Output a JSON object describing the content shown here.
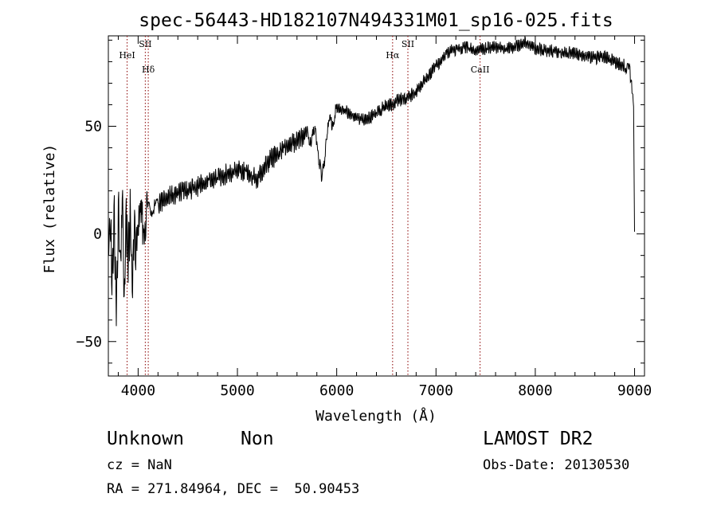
{
  "chart_data": {
    "type": "line",
    "title": "spec-56443-HD182107N494331M01_sp16-025.fits",
    "xlabel": "Wavelength (Å)",
    "ylabel": "Flux (relative)",
    "xlim": [
      3700,
      9100
    ],
    "ylim": [
      -66,
      92
    ],
    "xticks": [
      4000,
      5000,
      6000,
      7000,
      8000,
      9000
    ],
    "yticks": [
      -50,
      0,
      50
    ],
    "xtick_labels": [
      "4000",
      "5000",
      "6000",
      "7000",
      "8000",
      "9000"
    ],
    "ytick_labels": [
      "−50",
      "0",
      "50"
    ],
    "grid": false,
    "legend": "none",
    "line_color": "#000000",
    "marker_color": "#8b0000",
    "spectral_lines": [
      {
        "label": "HeI",
        "wavelength": 3889
      },
      {
        "label": "SII",
        "wavelength": 4072
      },
      {
        "label": "Hδ",
        "wavelength": 4102
      },
      {
        "label": "Hα",
        "wavelength": 6563
      },
      {
        "label": "SII",
        "wavelength": 6717
      },
      {
        "label": "CaII",
        "wavelength": 7444
      }
    ],
    "series": [
      {
        "x": [
          3700,
          3720,
          3740,
          3760,
          3780,
          3800,
          3820,
          3840,
          3860,
          3880,
          3900,
          3920,
          3940,
          3960,
          3980,
          4000,
          4050,
          4100,
          4150,
          4200,
          4300,
          4400,
          4500,
          4600,
          4700,
          4800,
          4900,
          5000,
          5100,
          5200,
          5300,
          5400,
          5500,
          5600,
          5700,
          5750,
          5800,
          5850,
          5900,
          5950,
          6000,
          6100,
          6200,
          6300,
          6400,
          6500,
          6560,
          6600,
          6700,
          6800,
          6900,
          7000,
          7100,
          7200,
          7300,
          7400,
          7500,
          7600,
          7700,
          7800,
          7900,
          8000,
          8100,
          8200,
          8300,
          8400,
          8500,
          8600,
          8700,
          8800,
          8900,
          8950,
          8990,
          9000
        ],
        "y": [
          -5,
          5,
          -25,
          10,
          -40,
          15,
          -15,
          20,
          -30,
          5,
          -10,
          8,
          -20,
          0,
          -5,
          2,
          5,
          10,
          12,
          14,
          17,
          19,
          20,
          22,
          25,
          26,
          28,
          30,
          29,
          25,
          33,
          37,
          41,
          43,
          47,
          45,
          46,
          22,
          48,
          52,
          58,
          57,
          54,
          53,
          56,
          60,
          60,
          62,
          63,
          66,
          72,
          78,
          84,
          86,
          87,
          85,
          86,
          87,
          86,
          87,
          89,
          86,
          85,
          85,
          84,
          84,
          83,
          82,
          82,
          80,
          78,
          76,
          60,
          1
        ]
      }
    ]
  },
  "info": {
    "object_type": "Unknown",
    "object_class": "Non",
    "survey": "LAMOST DR2",
    "cz": "cz = NaN",
    "obs_date": "Obs-Date: 20130530",
    "coords": "RA = 271.84964, DEC =  50.90453"
  }
}
